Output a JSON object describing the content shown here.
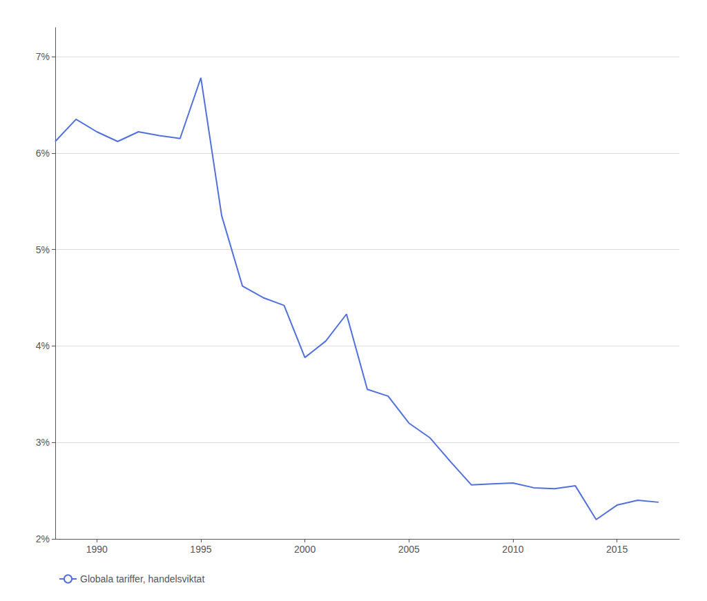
{
  "chart_data": {
    "type": "line",
    "x": [
      1988,
      1989,
      1990,
      1991,
      1992,
      1993,
      1994,
      1995,
      1996,
      1997,
      1998,
      1999,
      2000,
      2001,
      2002,
      2003,
      2004,
      2005,
      2006,
      2007,
      2008,
      2009,
      2010,
      2011,
      2012,
      2013,
      2014,
      2015,
      2016,
      2017
    ],
    "series": [
      {
        "name": "Globala tariffer, handelsviktat",
        "values": [
          6.12,
          6.35,
          6.22,
          6.12,
          6.22,
          6.18,
          6.15,
          6.78,
          5.35,
          4.62,
          4.5,
          4.42,
          3.88,
          4.05,
          4.33,
          3.55,
          3.48,
          3.2,
          3.05,
          2.8,
          2.56,
          2.57,
          2.58,
          2.53,
          2.52,
          2.55,
          2.2,
          2.35,
          2.4,
          2.38
        ]
      }
    ],
    "xlim": [
      1988.0,
      2018.0
    ],
    "xticks": [
      1990,
      1995,
      2000,
      2005,
      2010,
      2015
    ],
    "ylim": [
      2.0,
      7.3
    ],
    "yticks": [
      {
        "value": 2,
        "label": "2%"
      },
      {
        "value": 3,
        "label": "3%"
      },
      {
        "value": 4,
        "label": "4%"
      },
      {
        "value": 5,
        "label": "5%"
      },
      {
        "value": 6,
        "label": "6%"
      },
      {
        "value": 7,
        "label": "7%"
      }
    ],
    "grid": true,
    "legend": "lower left"
  }
}
